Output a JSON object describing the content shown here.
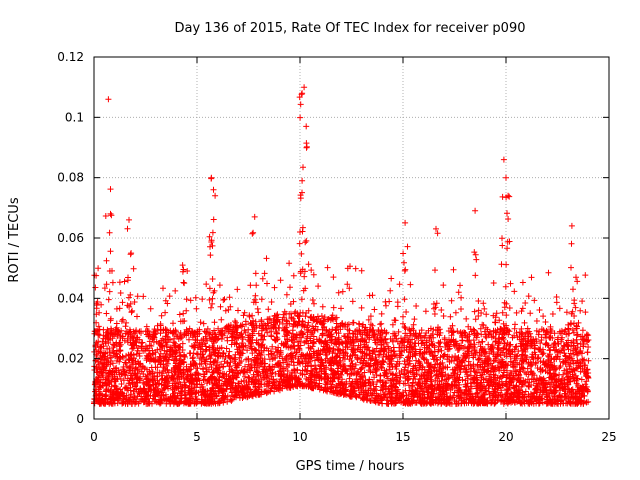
{
  "chart_data": {
    "type": "scatter",
    "title": "Day 136 of 2015, Rate Of TEC Index for receiver p090",
    "xlabel": "GPS time / hours",
    "ylabel": "ROTI / TECUs",
    "xlim": [
      0,
      25
    ],
    "ylim": [
      0,
      0.12
    ],
    "x_ticks": [
      0,
      5,
      10,
      15,
      20,
      25
    ],
    "y_ticks": [
      0,
      0.02,
      0.04,
      0.06,
      0.08,
      0.1,
      0.12
    ],
    "x_tick_labels": [
      "0",
      "5",
      "10",
      "15",
      "20",
      "25"
    ],
    "y_tick_labels": [
      "0",
      "0.02",
      "0.04",
      "0.06",
      "0.08",
      "0.1",
      "0.12"
    ],
    "grid": true,
    "marker": "plus",
    "marker_color": "#ff0000",
    "series": [
      {
        "name": "ROTI",
        "note": "dense band of points 0.005-0.03 TECU/s over 0-24 h; notable peaks listed",
        "x_range": [
          0,
          24
        ],
        "baseline_range": [
          0.005,
          0.03
        ],
        "peaks": [
          {
            "x": 0.2,
            "y": 0.05
          },
          {
            "x": 0.7,
            "y": 0.106
          },
          {
            "x": 0.8,
            "y": 0.068
          },
          {
            "x": 1.7,
            "y": 0.066
          },
          {
            "x": 1.8,
            "y": 0.055
          },
          {
            "x": 4.3,
            "y": 0.051
          },
          {
            "x": 5.7,
            "y": 0.08
          },
          {
            "x": 5.8,
            "y": 0.076
          },
          {
            "x": 7.8,
            "y": 0.067
          },
          {
            "x": 10.1,
            "y": 0.108
          },
          {
            "x": 10.2,
            "y": 0.11
          },
          {
            "x": 10.3,
            "y": 0.097
          },
          {
            "x": 10.1,
            "y": 0.079
          },
          {
            "x": 15.1,
            "y": 0.065
          },
          {
            "x": 16.6,
            "y": 0.063
          },
          {
            "x": 18.5,
            "y": 0.069
          },
          {
            "x": 19.9,
            "y": 0.086
          },
          {
            "x": 20.0,
            "y": 0.08
          },
          {
            "x": 20.1,
            "y": 0.074
          },
          {
            "x": 23.2,
            "y": 0.064
          },
          {
            "x": 23.4,
            "y": 0.047
          }
        ]
      }
    ]
  }
}
